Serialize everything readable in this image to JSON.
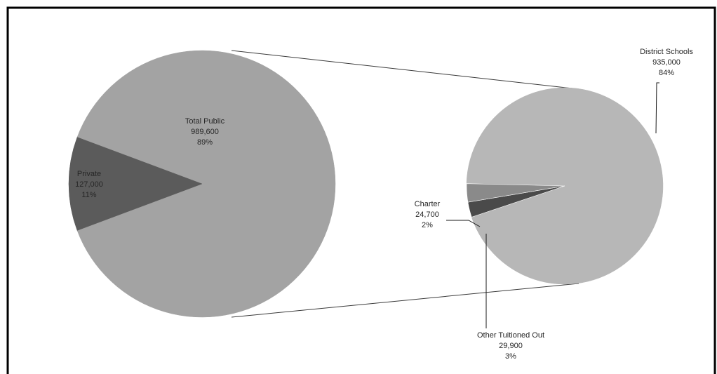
{
  "chart_data": {
    "type": "pie",
    "subtype": "pie-of-pie",
    "title": "",
    "primary_pie": {
      "slices": [
        {
          "label": "Total Public",
          "value": 989600,
          "percent": "89%",
          "value_text": "989,600",
          "color": "#a3a3a3",
          "expanded": true
        },
        {
          "label": "Private",
          "value": 127000,
          "percent": "11%",
          "value_text": "127,000",
          "color": "#5b5b5b"
        }
      ]
    },
    "secondary_pie": {
      "source": "Total Public",
      "slices": [
        {
          "label": "District Schools",
          "value": 935000,
          "percent": "84%",
          "value_text": "935,000",
          "color": "#b7b7b7"
        },
        {
          "label": "Charter",
          "value": 24700,
          "percent": "2%",
          "value_text": "24,700",
          "color": "#4a4a4a"
        },
        {
          "label": "Other Tuitioned Out",
          "value": 29900,
          "percent": "3%",
          "value_text": "29,900",
          "color": "#8a8a8a"
        }
      ]
    },
    "legend": "none",
    "label_style": "category, value, percentage"
  }
}
